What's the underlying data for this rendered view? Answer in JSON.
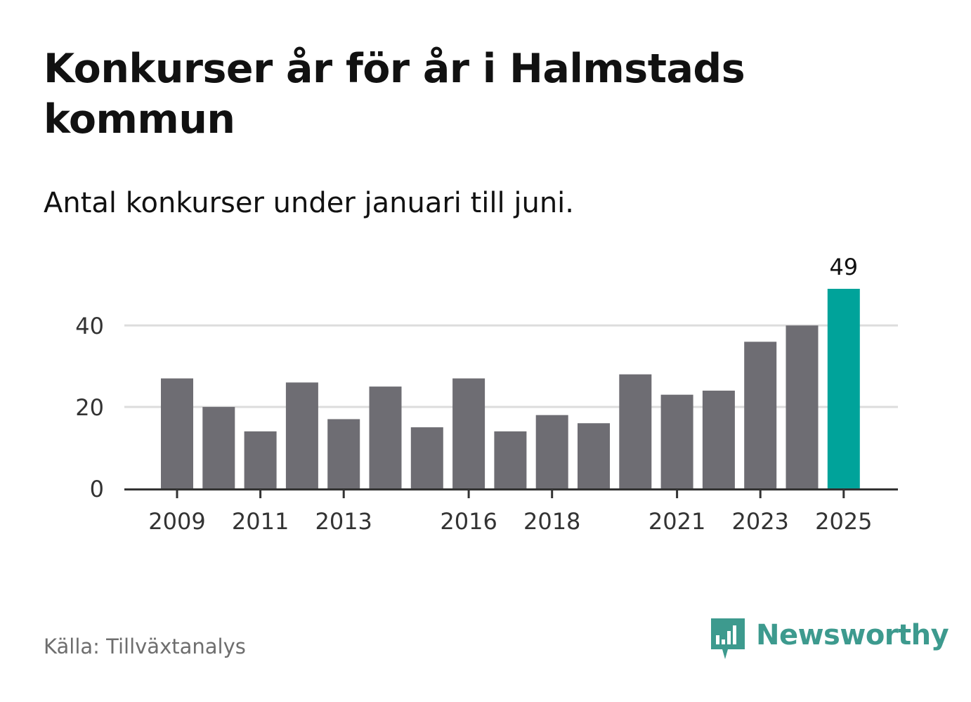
{
  "title": "Konkurser år för år i Halmstads kommun",
  "subtitle": "Antal konkurser under januari till juni.",
  "source": "Källa: Tillväxtanalys",
  "logo": {
    "text": "Newsworthy",
    "icon": "newsworthy-bar-chart-bubble-icon",
    "color": "#3d9a8e"
  },
  "colors": {
    "bar": "#6e6d73",
    "highlight": "#00a39a",
    "grid": "#dddddd",
    "axis": "#333333",
    "tick_text": "#333333"
  },
  "chart_data": {
    "type": "bar",
    "title": "Konkurser år för år i Halmstads kommun",
    "subtitle": "Antal konkurser under januari till juni.",
    "categories": [
      "2009",
      "2010",
      "2011",
      "2012",
      "2013",
      "2014",
      "2015",
      "2016",
      "2017",
      "2018",
      "2019",
      "2020",
      "2021",
      "2022",
      "2023",
      "2024",
      "2025"
    ],
    "values": [
      27,
      20,
      14,
      26,
      17,
      25,
      15,
      27,
      14,
      18,
      16,
      28,
      23,
      24,
      36,
      40,
      49
    ],
    "highlight_index": 16,
    "highlight_label": "49",
    "x_tick_labels": [
      "2009",
      "2011",
      "2013",
      "2016",
      "2018",
      "2021",
      "2023",
      "2025"
    ],
    "y_ticks": [
      0,
      20,
      40
    ],
    "ylim": [
      0,
      49
    ],
    "grid": true,
    "xlabel": "",
    "ylabel": ""
  }
}
